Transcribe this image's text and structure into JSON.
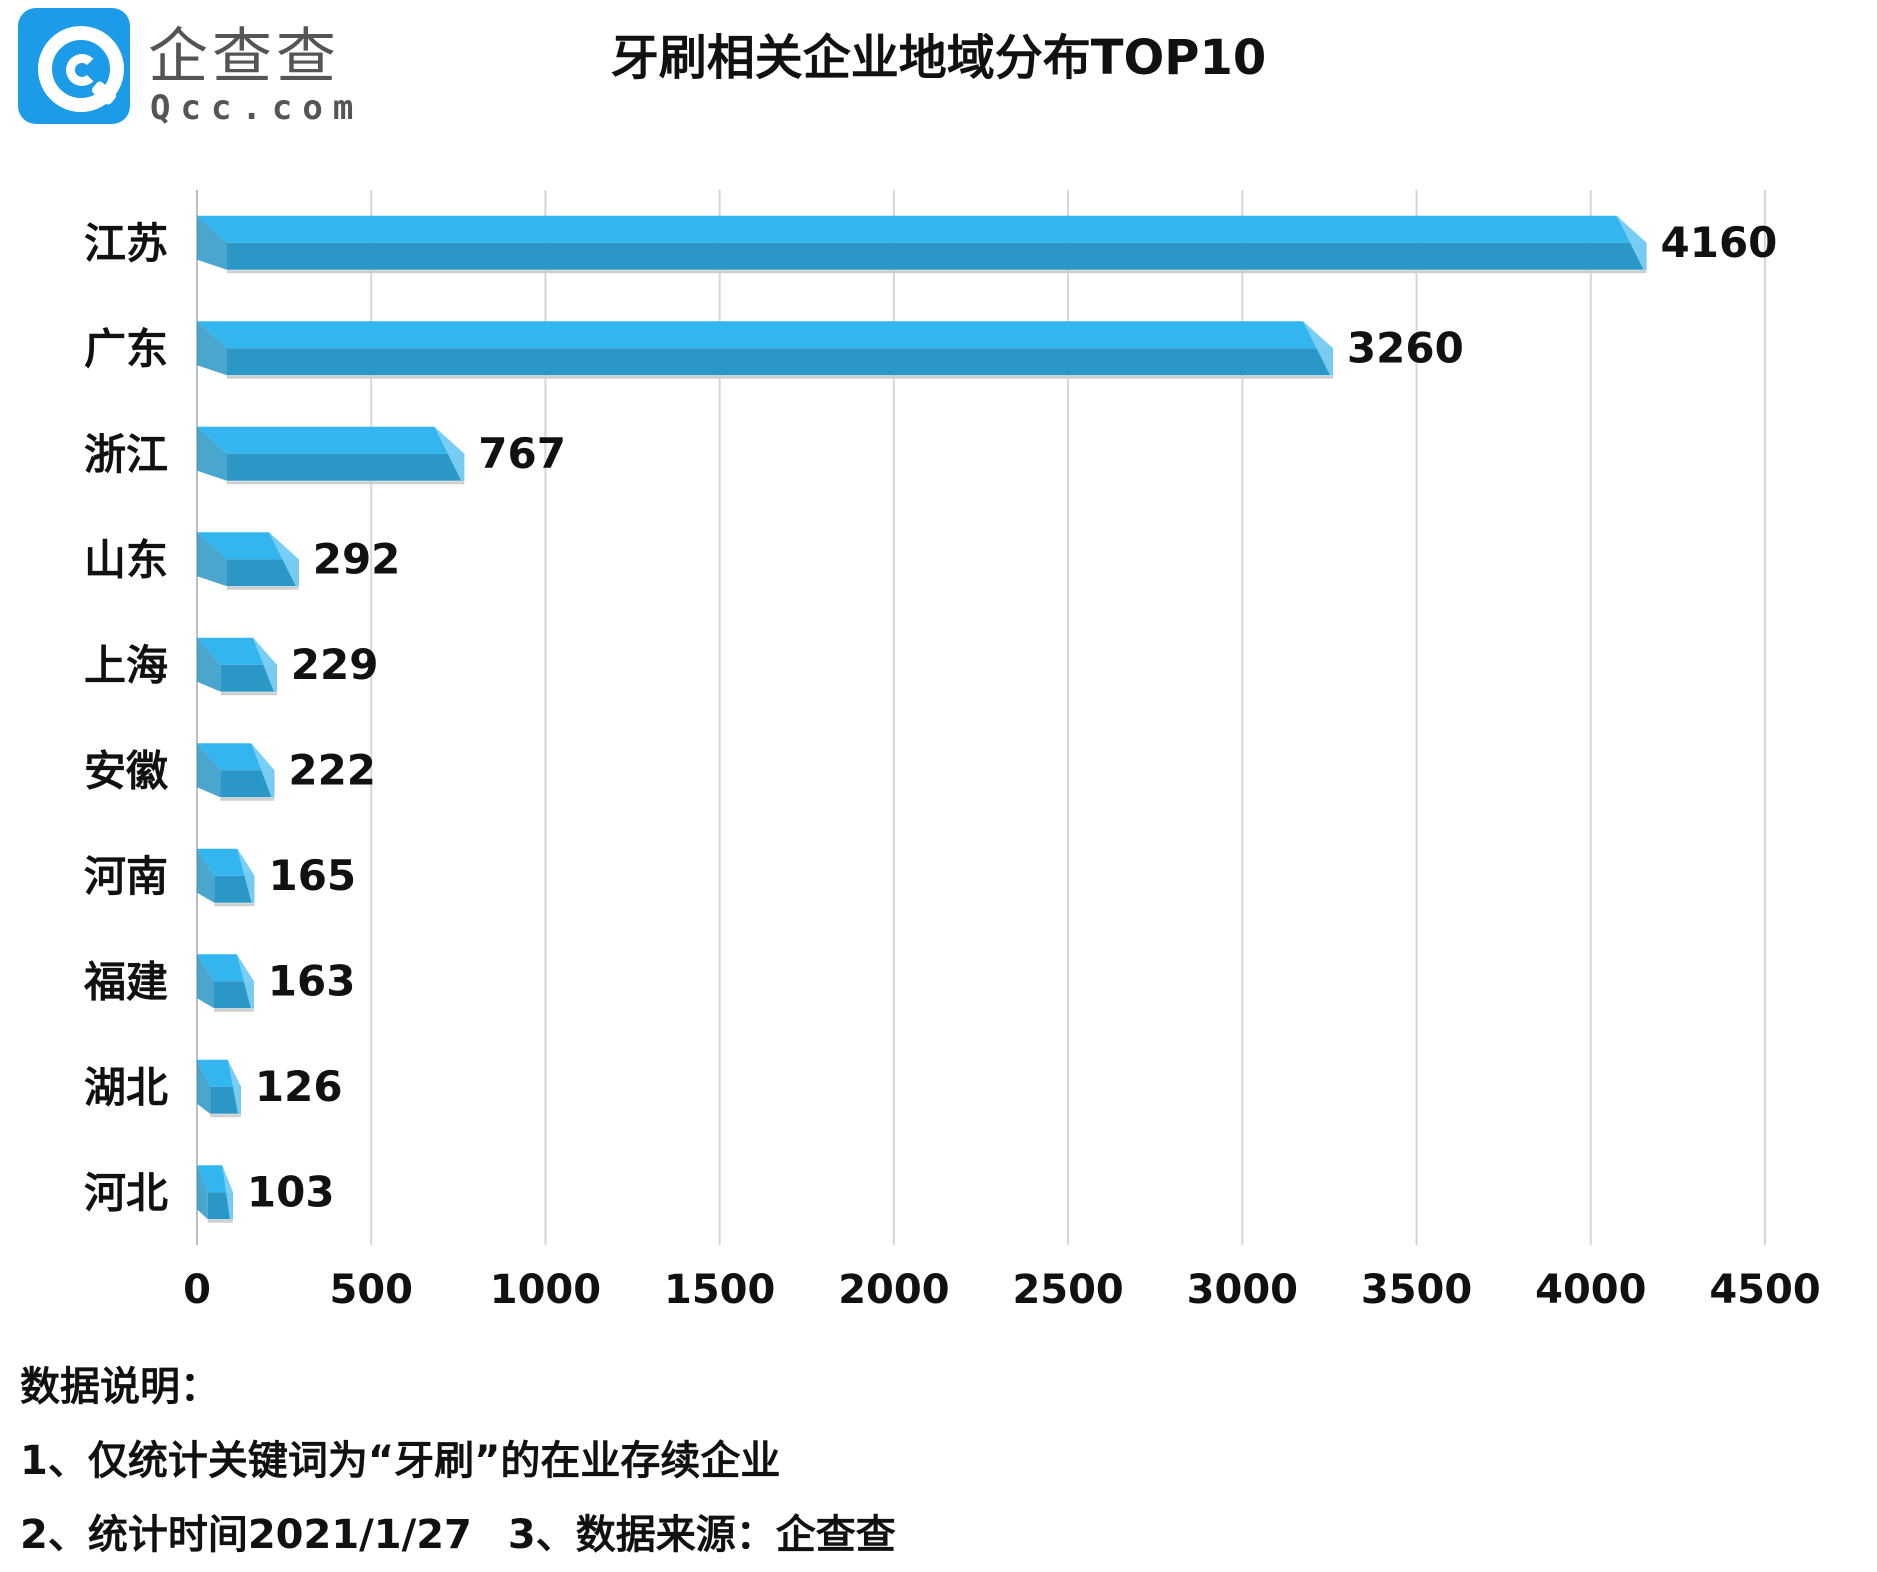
{
  "brand": {
    "name_cn": "企查查",
    "name_en": "Qcc.com",
    "logo_color": "#1c9be8"
  },
  "chart_data": {
    "type": "bar",
    "orientation": "horizontal",
    "title": "牙刷相关企业地域分布TOP10",
    "categories": [
      "江苏",
      "广东",
      "浙江",
      "山东",
      "上海",
      "安徽",
      "河南",
      "福建",
      "湖北",
      "河北"
    ],
    "values": [
      4160,
      3260,
      767,
      292,
      229,
      222,
      165,
      163,
      126,
      103
    ],
    "xlim": [
      0,
      4500
    ],
    "xticks": [
      "0",
      "500",
      "1000",
      "1500",
      "2000",
      "2500",
      "3000",
      "3500",
      "4000",
      "4500"
    ],
    "grid": "vertical",
    "bar_style": "3d",
    "bar_color_top": "#33b5f0",
    "bar_color_bottom": "#2a97c6",
    "data_labels": true
  },
  "notes": {
    "heading": "数据说明：",
    "line1": "1、仅统计关键词为“牙刷”的在业存续企业",
    "line2a": "2、统计时间2021/1/27",
    "line2b": "3、数据来源：企查查"
  }
}
